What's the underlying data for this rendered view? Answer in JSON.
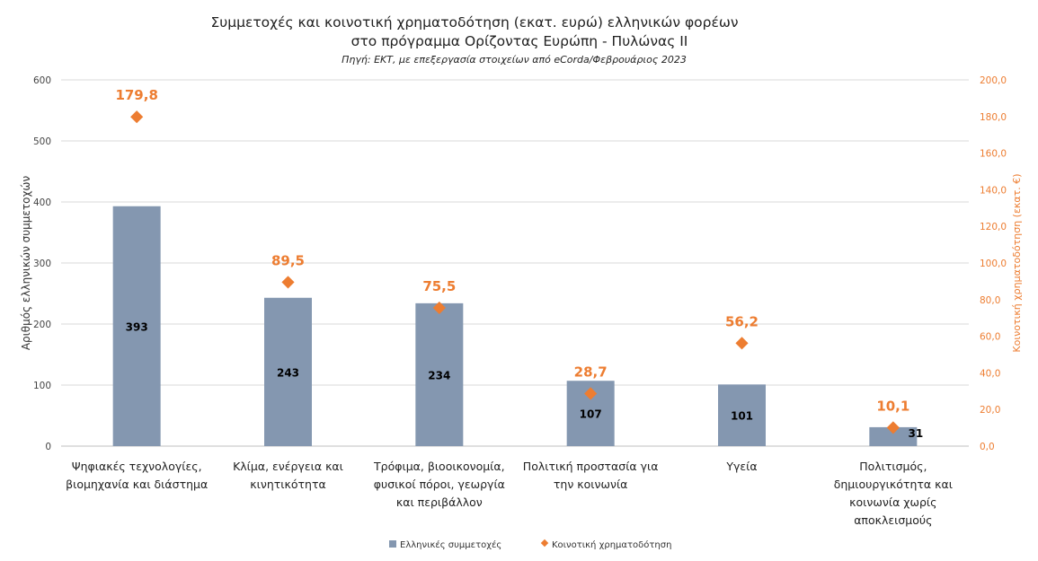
{
  "chart_data": {
    "type": "bar",
    "title": "Συμμετοχές και κοινοτική χρηματοδότηση (εκατ. ευρώ) ελληνικών φορέων",
    "title_line2": "στο πρόγραμμα Ορίζοντας Ευρώπη - Πυλώνας ΙΙ",
    "subtitle": "Πηγή: ΕΚΤ, με επεξεργασία στοιχείων από eCorda/Φεβρουάριος 2023",
    "ylabel": "Αριθμός ελληνικών συμμετοχών",
    "y2label": "Κοινοτική χρηματοδότηση (εκατ. €)",
    "ylim": [
      0,
      600
    ],
    "y2lim": [
      0,
      200
    ],
    "yticks": [
      "0",
      "100",
      "200",
      "300",
      "400",
      "500",
      "600"
    ],
    "y2ticks": [
      "0,0",
      "20,0",
      "40,0",
      "60,0",
      "80,0",
      "100,0",
      "120,0",
      "140,0",
      "160,0",
      "180,0",
      "200,0"
    ],
    "grid": true,
    "legend_placement": "bottom",
    "categories": [
      [
        "Ψηφιακές τεχνολογίες,",
        "βιομηχανία και διάστημα"
      ],
      [
        "Κλίμα, ενέργεια και",
        "κινητικότητα"
      ],
      [
        "Τρόφιμα, βιοοικονομία,",
        "φυσικοί πόροι, γεωργία",
        "και περιβάλλον"
      ],
      [
        "Πολιτική προστασία για",
        "την κοινωνία"
      ],
      [
        "Υγεία"
      ],
      [
        "Πολιτισμός,",
        "δημιουργικότητα και",
        "κοινωνία χωρίς",
        "αποκλεισμούς"
      ]
    ],
    "series": [
      {
        "name": "Ελληνικές συμμετοχές",
        "type": "bar",
        "axis": "left",
        "color": "#8497b0",
        "values": [
          393,
          243,
          234,
          107,
          101,
          31
        ],
        "labels": [
          "393",
          "243",
          "234",
          "107",
          "101",
          "31"
        ]
      },
      {
        "name": "Κοινοτική χρηματοδότηση",
        "type": "scatter",
        "axis": "right",
        "color": "#ed7d31",
        "values": [
          179.8,
          89.5,
          75.5,
          28.7,
          56.2,
          10.1
        ],
        "labels": [
          "179,8",
          "89,5",
          "75,5",
          "28,7",
          "56,2",
          "10,1"
        ]
      }
    ]
  }
}
